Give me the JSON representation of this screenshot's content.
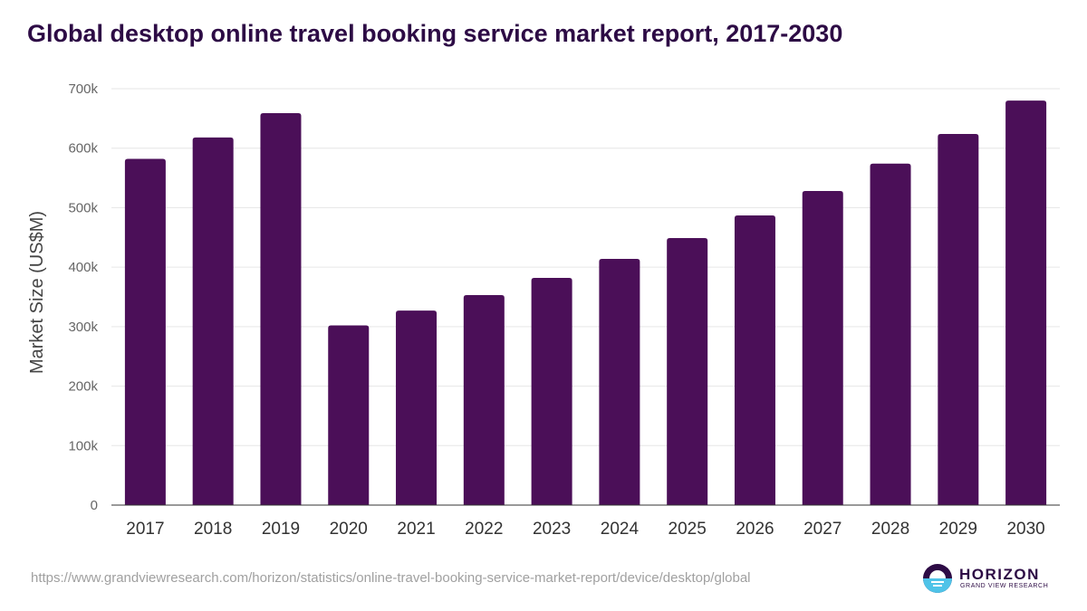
{
  "chart_data": {
    "type": "bar",
    "title": "Global desktop online travel booking service market report, 2017-2030",
    "xlabel": "",
    "ylabel": "Market Size (US$M)",
    "ylim": [
      0,
      700000
    ],
    "yticks": [
      0,
      100000,
      200000,
      300000,
      400000,
      500000,
      600000,
      700000
    ],
    "ytick_labels": [
      "0",
      "100k",
      "200k",
      "300k",
      "400k",
      "500k",
      "600k",
      "700k"
    ],
    "categories": [
      "2017",
      "2018",
      "2019",
      "2020",
      "2021",
      "2022",
      "2023",
      "2024",
      "2025",
      "2026",
      "2027",
      "2028",
      "2029",
      "2030"
    ],
    "values": [
      582000,
      618000,
      659000,
      302000,
      327000,
      353000,
      382000,
      414000,
      449000,
      487000,
      528000,
      574000,
      624000,
      680000
    ],
    "grid": true,
    "legend": "none",
    "bar_color": "#4b0f58"
  },
  "source_url": "https://www.grandviewresearch.com/horizon/statistics/online-travel-booking-service-market-report/device/desktop/global",
  "branding": {
    "name": "HORIZON",
    "subtitle": "GRAND VIEW RESEARCH"
  }
}
